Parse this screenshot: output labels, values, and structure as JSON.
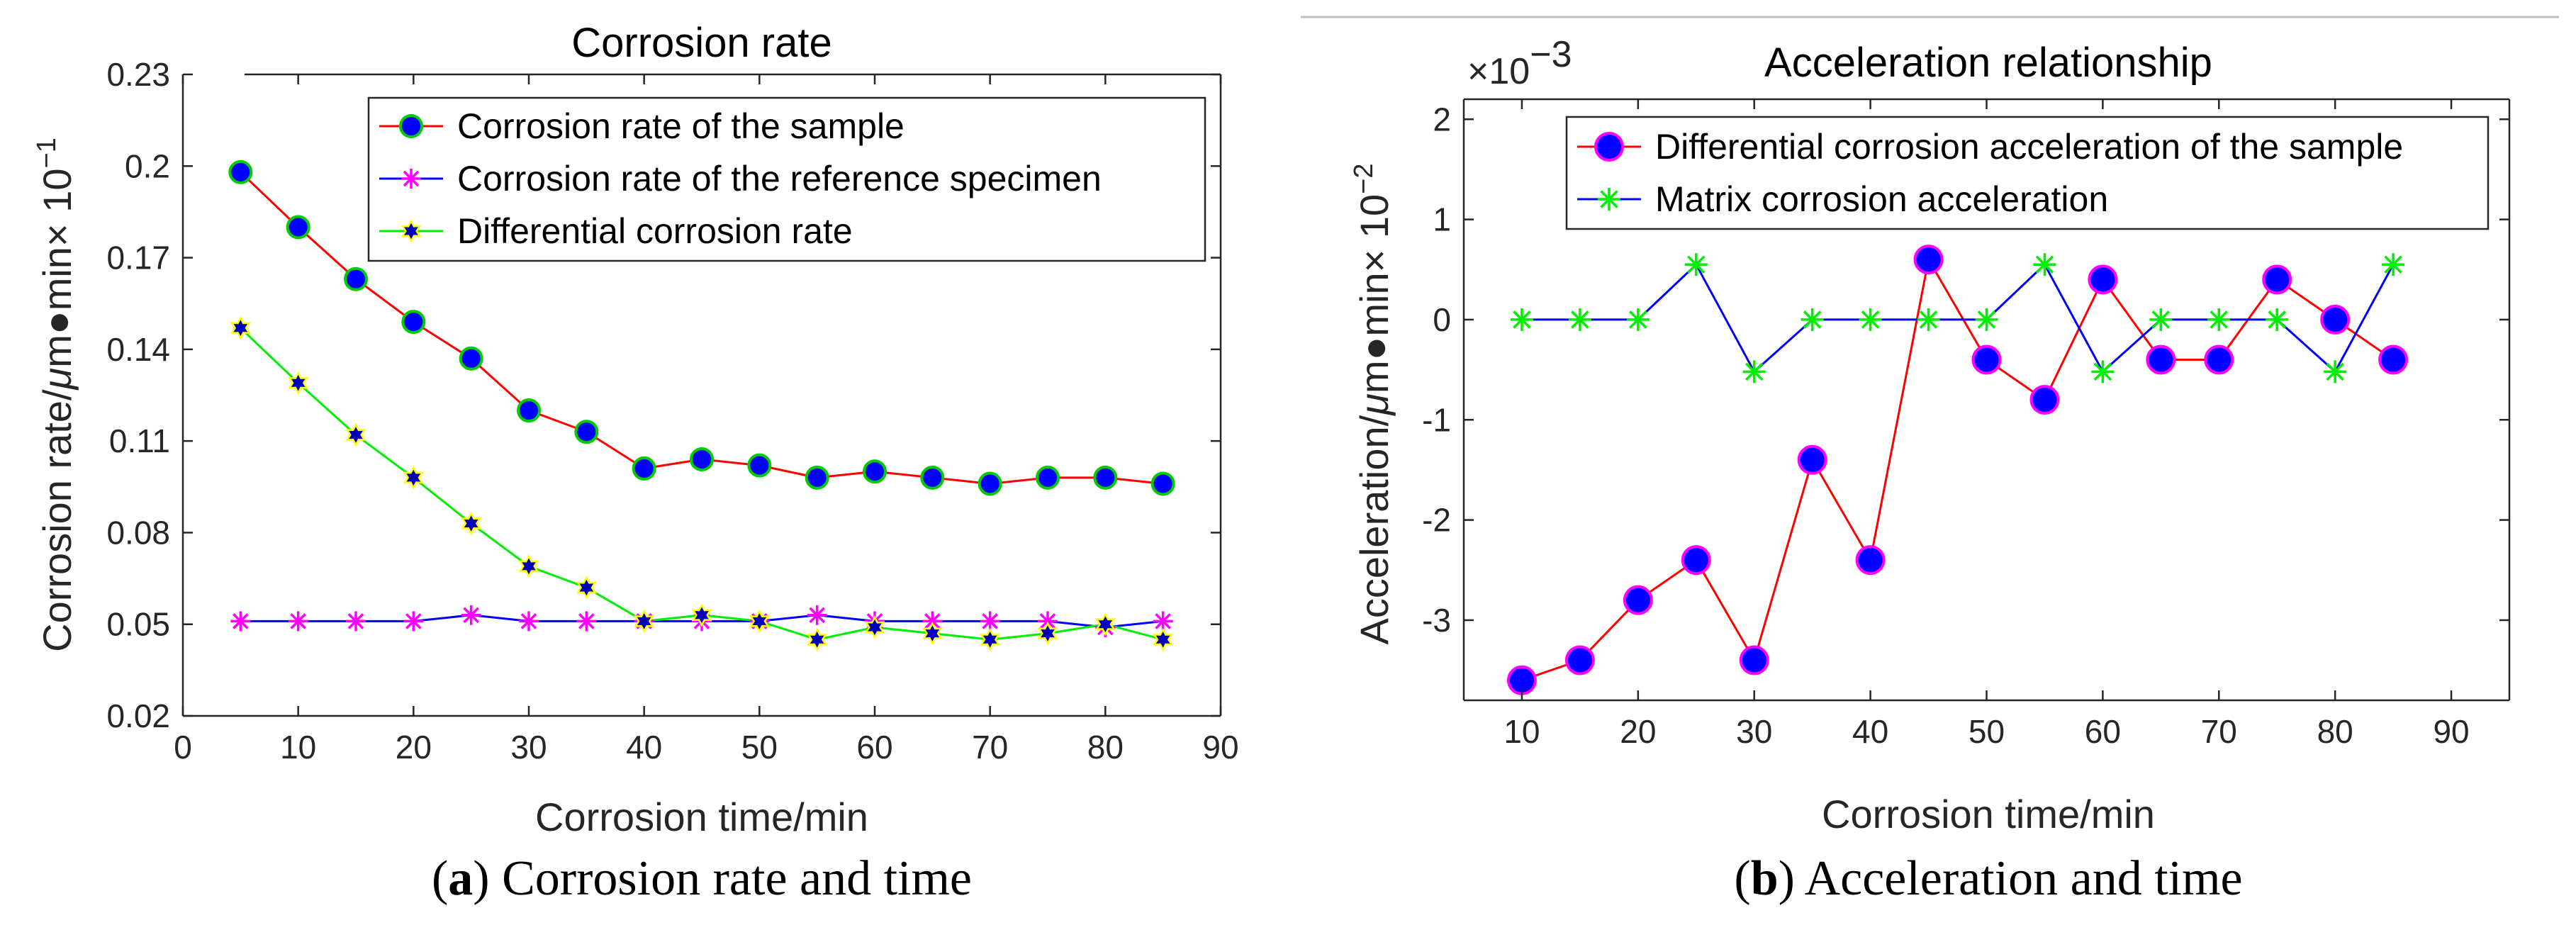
{
  "chart_data": [
    {
      "type": "line",
      "title": "Corrosion rate",
      "xlabel": "Corrosion time/min",
      "ylabel": "Corrosion rate/μm●min × 10⁻¹",
      "ylabel_parts": {
        "main": "Corrosion rate/",
        "mu": "μ",
        "rest": "m●min× 10",
        "exp": "−1"
      },
      "xlim": [
        0,
        90
      ],
      "ylim": [
        0.02,
        0.23
      ],
      "xticks": [
        "0",
        "10",
        "20",
        "30",
        "40",
        "50",
        "60",
        "70",
        "80",
        "90"
      ],
      "yticks": [
        "0.02",
        "0.05",
        "0.08",
        "0.11",
        "0.14",
        "0.17",
        "0.2",
        "0.23"
      ],
      "legend_position": "top-right",
      "caption_letter": "a",
      "caption_text": "Corrosion rate and time",
      "x": [
        5,
        10,
        15,
        20,
        25,
        30,
        35,
        40,
        45,
        50,
        55,
        60,
        65,
        70,
        75,
        80,
        85
      ],
      "series": [
        {
          "name": "Corrosion rate of the sample",
          "color": "#ff0000",
          "marker": "circle",
          "marker_fill": "#0000ff",
          "marker_edge": "#00cc00",
          "values": [
            0.198,
            0.18,
            0.163,
            0.149,
            0.137,
            0.12,
            0.113,
            0.101,
            0.104,
            0.102,
            0.098,
            0.1,
            0.098,
            0.096,
            0.098,
            0.098,
            0.096
          ]
        },
        {
          "name": "Corrosion rate of the reference specimen",
          "color": "#0000ff",
          "marker": "asterisk",
          "marker_fill": "#ff00ff",
          "marker_edge": "#ff00ff",
          "values": [
            0.051,
            0.051,
            0.051,
            0.051,
            0.053,
            0.051,
            0.051,
            0.051,
            0.051,
            0.051,
            0.053,
            0.051,
            0.051,
            0.051,
            0.051,
            0.049,
            0.051
          ]
        },
        {
          "name": "Differential corrosion rate",
          "color": "#00ee00",
          "marker": "hexagram",
          "marker_fill": "#0000bb",
          "marker_edge": "#ffff00",
          "values": [
            0.147,
            0.129,
            0.112,
            0.098,
            0.083,
            0.069,
            0.062,
            0.051,
            0.053,
            0.051,
            0.045,
            0.049,
            0.047,
            0.045,
            0.047,
            0.05,
            0.045
          ]
        }
      ]
    },
    {
      "type": "line",
      "title": "Acceleration relationship",
      "xlabel": "Corrosion time/min",
      "ylabel": "Acceleration/μm●min × 10⁻²",
      "ylabel_parts": {
        "main": "Acceleration/",
        "mu": "μ",
        "rest": "m●min× 10",
        "exp": "−2"
      },
      "multiplier": "×10",
      "multiplier_exp": "−3",
      "xlim": [
        5,
        95
      ],
      "ylim": [
        -3.8,
        2.2
      ],
      "xticks": [
        "10",
        "20",
        "30",
        "40",
        "50",
        "60",
        "70",
        "80",
        "90"
      ],
      "yticks": [
        "-3",
        "-2",
        "-1",
        "0",
        "1",
        "2"
      ],
      "legend_position": "top-right",
      "caption_letter": "b",
      "caption_text": "Acceleration and time",
      "x": [
        10,
        15,
        20,
        25,
        30,
        35,
        40,
        45,
        50,
        55,
        60,
        65,
        70,
        75,
        80,
        85
      ],
      "series": [
        {
          "name": "Differential corrosion acceleration of the sample",
          "color": "#ff0000",
          "marker": "circle",
          "marker_fill": "#0000ff",
          "marker_edge": "#ff00ff",
          "values": [
            -3.6,
            -3.4,
            -2.8,
            -2.4,
            -3.4,
            -1.4,
            -2.4,
            0.6,
            -0.4,
            -0.8,
            0.4,
            -0.4,
            -0.4,
            0.4,
            0.0,
            -0.4
          ]
        },
        {
          "name": "Matrix corrosion acceleration",
          "color": "#0000ff",
          "marker": "asterisk",
          "marker_fill": "#00ee00",
          "marker_edge": "#00ee00",
          "values": [
            0.0,
            0.0,
            0.0,
            0.55,
            -0.52,
            0.0,
            0.0,
            0.0,
            0.0,
            0.55,
            -0.52,
            0.0,
            0.0,
            0.0,
            -0.52,
            0.55
          ]
        }
      ]
    }
  ]
}
